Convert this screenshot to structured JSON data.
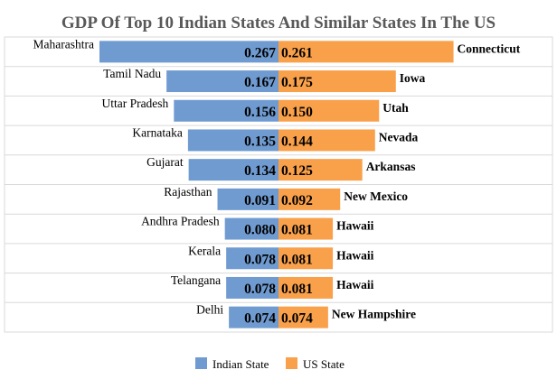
{
  "chart_data": {
    "type": "bar",
    "title": "GDP Of Top 10 Indian States And Similar States In The US",
    "categories": [
      "Maharashtra",
      "Tamil Nadu",
      "Uttar Pradesh",
      "Karnataka",
      "Gujarat",
      "Rajasthan",
      "Andhra Pradesh",
      "Kerala",
      "Telangana",
      "Delhi"
    ],
    "us_states": [
      "Connecticut",
      "Iowa",
      "Utah",
      "Nevada",
      "Arkansas",
      "New Mexico",
      "Hawaii",
      "Hawaii",
      "Hawaii",
      "New Hampshire"
    ],
    "series": [
      {
        "name": "Indian State",
        "values": [
          0.267,
          0.167,
          0.156,
          0.135,
          0.134,
          0.091,
          0.08,
          0.078,
          0.078,
          0.074
        ],
        "color": "#6f9bd1"
      },
      {
        "name": "US State",
        "values": [
          0.261,
          0.175,
          0.15,
          0.144,
          0.125,
          0.092,
          0.081,
          0.081,
          0.081,
          0.074
        ],
        "color": "#f9a04b"
      }
    ],
    "xlabel": "",
    "ylabel": "",
    "grid": false,
    "legend_position": "bottom"
  },
  "colors": {
    "grid_line": "#d9d9d9",
    "plot_border": "#d9d9d9"
  }
}
